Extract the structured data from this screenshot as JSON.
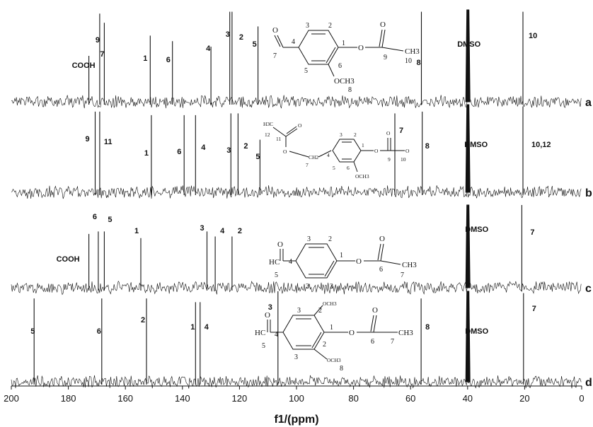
{
  "chart_data": {
    "type": "line",
    "title": "",
    "xlabel": "f1/(ppm)",
    "ylabel": "",
    "xlim": [
      200,
      0
    ],
    "x_reversed": true,
    "grid": false,
    "x_ticks": [
      200,
      180,
      160,
      140,
      120,
      100,
      80,
      60,
      40,
      20,
      0
    ],
    "series": [
      {
        "name": "a",
        "peaks": [
          {
            "x": 172.8,
            "h": 0.5,
            "label": "COOH",
            "bold": false
          },
          {
            "x": 169.0,
            "h": 0.96,
            "label": "9",
            "bold": true
          },
          {
            "x": 167.4,
            "h": 0.86,
            "label": "7",
            "bold": false
          },
          {
            "x": 151.3,
            "h": 0.72,
            "label": "1",
            "bold": true
          },
          {
            "x": 143.5,
            "h": 0.66,
            "label": "6",
            "bold": true
          },
          {
            "x": 130.0,
            "h": 0.6,
            "label": "4",
            "bold": true
          },
          {
            "x": 123.4,
            "h": 0.98,
            "label": "3",
            "bold": true
          },
          {
            "x": 122.6,
            "h": 0.98,
            "label": "2",
            "bold": true
          },
          {
            "x": 113.5,
            "h": 0.82,
            "label": "5",
            "bold": true
          },
          {
            "x": 56.2,
            "h": 0.98,
            "label": "8",
            "bold": true
          },
          {
            "x": 39.9,
            "h": 1.0,
            "label": "DMSO",
            "bold": true
          },
          {
            "x": 20.6,
            "h": 0.98,
            "label": "10",
            "bold": true
          }
        ]
      },
      {
        "name": "b",
        "peaks": [
          {
            "x": 170.6,
            "h": 0.92,
            "label": "9",
            "bold": true
          },
          {
            "x": 169.0,
            "h": 0.92,
            "label": "11",
            "bold": true
          },
          {
            "x": 150.9,
            "h": 0.88,
            "label": "1",
            "bold": true
          },
          {
            "x": 139.4,
            "h": 0.88,
            "label": "6",
            "bold": true
          },
          {
            "x": 135.4,
            "h": 0.88,
            "label": "4",
            "bold": true
          },
          {
            "x": 123.0,
            "h": 0.9,
            "label": "3",
            "bold": true
          },
          {
            "x": 120.5,
            "h": 0.9,
            "label": "2",
            "bold": true
          },
          {
            "x": 112.8,
            "h": 0.6,
            "label": "5",
            "bold": true
          },
          {
            "x": 65.5,
            "h": 0.9,
            "label": "7",
            "bold": true
          },
          {
            "x": 55.9,
            "h": 0.92,
            "label": "8",
            "bold": true
          },
          {
            "x": 39.9,
            "h": 1.0,
            "label": "DMSO",
            "bold": true
          },
          {
            "x": 20.6,
            "h": 0.98,
            "label": "10,12",
            "bold": true
          }
        ]
      },
      {
        "name": "c",
        "peaks": [
          {
            "x": 172.8,
            "h": 0.65,
            "label": "COOH",
            "bold": true
          },
          {
            "x": 169.5,
            "h": 0.68,
            "label": "6",
            "bold": true
          },
          {
            "x": 167.4,
            "h": 0.68,
            "label": "5",
            "bold": true
          },
          {
            "x": 154.6,
            "h": 0.6,
            "label": "1",
            "bold": true
          },
          {
            "x": 131.4,
            "h": 0.68,
            "label": "3",
            "bold": true
          },
          {
            "x": 128.5,
            "h": 0.62,
            "label": "4",
            "bold": true
          },
          {
            "x": 122.6,
            "h": 0.62,
            "label": "2",
            "bold": true
          },
          {
            "x": 39.9,
            "h": 1.0,
            "label": "DMSO",
            "bold": true
          },
          {
            "x": 21.0,
            "h": 1.0,
            "label": "7",
            "bold": true
          }
        ]
      },
      {
        "name": "d",
        "peaks": [
          {
            "x": 192.0,
            "h": 0.92,
            "label": "5",
            "bold": true
          },
          {
            "x": 168.3,
            "h": 0.92,
            "label": "6",
            "bold": true
          },
          {
            "x": 152.6,
            "h": 0.92,
            "label": "2",
            "bold": true
          },
          {
            "x": 135.4,
            "h": 0.88,
            "label": "1",
            "bold": true
          },
          {
            "x": 133.8,
            "h": 0.88,
            "label": "4",
            "bold": true
          },
          {
            "x": 106.5,
            "h": 1.0,
            "label": "3",
            "bold": true
          },
          {
            "x": 56.3,
            "h": 0.92,
            "label": "8",
            "bold": true
          },
          {
            "x": 39.9,
            "h": 1.0,
            "label": "DMSO",
            "bold": true
          },
          {
            "x": 20.4,
            "h": 0.98,
            "label": "7",
            "bold": true
          }
        ]
      }
    ],
    "structures": {
      "a": {
        "atoms": [
          "O",
          "O",
          "O",
          "CH3",
          "OCH3"
        ],
        "numbers": [
          "1",
          "2",
          "3",
          "4",
          "5",
          "6",
          "7",
          "9",
          "10",
          "8"
        ]
      },
      "b": {
        "atoms": [
          "H3C",
          "O",
          "O",
          "O",
          "O",
          "O",
          "CH2",
          "OCH3"
        ],
        "numbers": [
          "12",
          "11",
          "7",
          "1",
          "2",
          "3",
          "4",
          "5",
          "6",
          "9",
          "10"
        ]
      },
      "c": {
        "atoms": [
          "O",
          "HC",
          "O",
          "O",
          "CH3"
        ],
        "numbers": [
          "1",
          "2",
          "3",
          "4",
          "5",
          "6",
          "7",
          "2",
          "3"
        ]
      },
      "d": {
        "atoms": [
          "O",
          "HC",
          "OCH3",
          "O",
          "O",
          "CH3",
          "OCH3"
        ],
        "numbers": [
          "1",
          "2",
          "2",
          "3",
          "3",
          "4",
          "5",
          "6",
          "7",
          "8"
        ]
      }
    }
  }
}
